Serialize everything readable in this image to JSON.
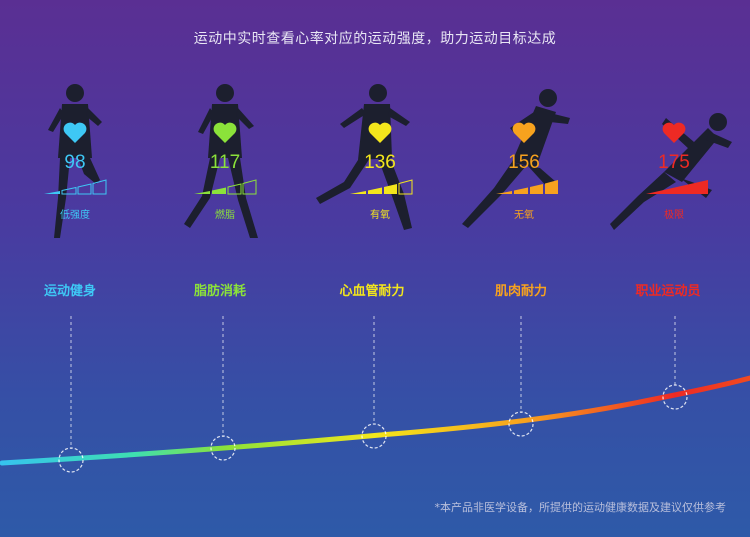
{
  "headline": "运动中实时查看心率对应的运动强度，助力运动目标达成",
  "zones": [
    {
      "bpm": "98",
      "label": "低强度",
      "category": "运动健身",
      "color": "#3ec8f5"
    },
    {
      "bpm": "117",
      "label": "燃脂",
      "category": "脂肪消耗",
      "color": "#8be23a"
    },
    {
      "bpm": "136",
      "label": "有氧",
      "category": "心血管耐力",
      "color": "#f3e61c"
    },
    {
      "bpm": "156",
      "label": "无氧",
      "category": "肌肉耐力",
      "color": "#f7a21e"
    },
    {
      "bpm": "175",
      "label": "极限",
      "category": "职业运动员",
      "color": "#ee2a24"
    }
  ],
  "footnote": "*本产品非医学设备，所提供的运动健康数据及建议仅供参考"
}
